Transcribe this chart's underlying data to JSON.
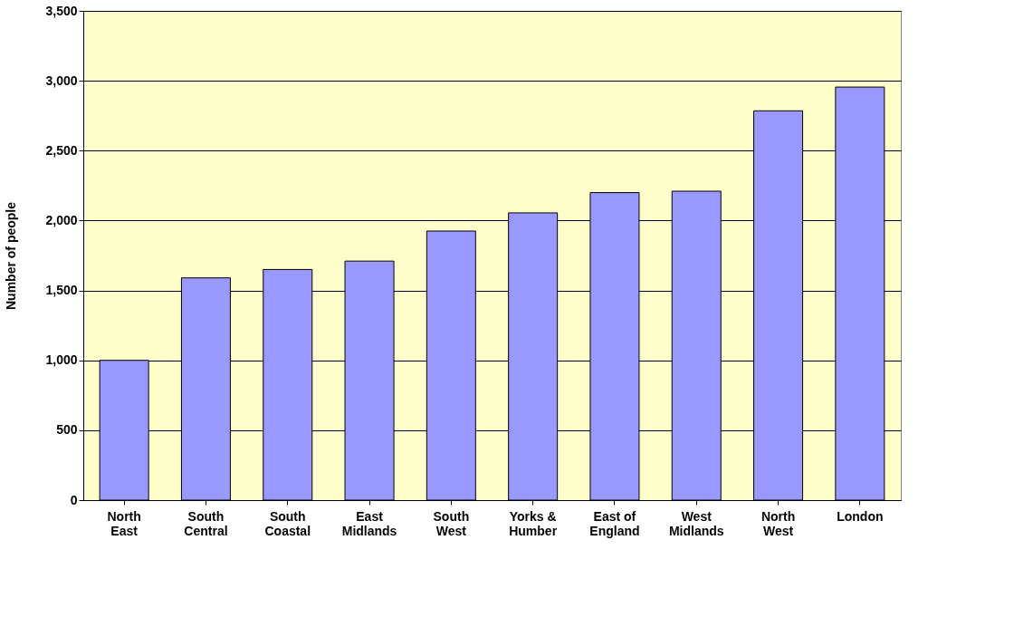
{
  "chart_data": {
    "type": "bar",
    "ylabel": "Number of people",
    "categories": [
      "North East",
      "South Central",
      "South Coastal",
      "East Midlands",
      "South West",
      "Yorks & Humber",
      "East of England",
      "West Midlands",
      "North West",
      "London"
    ],
    "values": [
      1000,
      1590,
      1650,
      1710,
      1925,
      2055,
      2200,
      2210,
      2785,
      2955
    ],
    "color": "#9999ff",
    "ylim": [
      0,
      3500
    ],
    "yticks": [
      0,
      500,
      {
        "value": 1000,
        "label": "1,000"
      },
      {
        "value": 1500,
        "label": "1,500"
      },
      {
        "value": 2000,
        "label": "2,000"
      },
      {
        "value": 2500,
        "label": "2,500"
      },
      {
        "value": 3000,
        "label": "3,000"
      },
      {
        "value": 3500,
        "label": "3,500"
      }
    ],
    "grid": "y"
  }
}
